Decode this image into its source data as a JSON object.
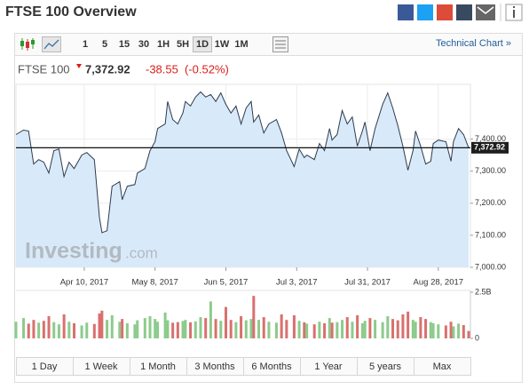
{
  "header": {
    "title": "FTSE 100 Overview"
  },
  "toolbar": {
    "intervals": [
      "1",
      "5",
      "15",
      "30",
      "1H",
      "5H",
      "1D",
      "1W",
      "1M"
    ],
    "active_interval": "1D",
    "technical_link": "Technical Chart »"
  },
  "quote": {
    "name": "FTSE 100",
    "last": 7372.92,
    "last_label": "7,372.92",
    "change": -38.55,
    "change_pct": -0.52,
    "change_pct_label": "(-0.52%)"
  },
  "watermark": {
    "brand": "Investing",
    "suffix": ".com"
  },
  "ranges": [
    "1 Day",
    "1 Week",
    "1 Month",
    "3 Months",
    "6 Months",
    "1 Year",
    "5 years",
    "Max"
  ],
  "chart_data": {
    "type": "line",
    "grid": true,
    "x": [
      "2017-03-14",
      "2017-03-17",
      "2017-03-19",
      "2017-03-21",
      "2017-03-23",
      "2017-03-25",
      "2017-03-27",
      "2017-03-29",
      "2017-03-31",
      "2017-04-02",
      "2017-04-04",
      "2017-04-06",
      "2017-04-09",
      "2017-04-11",
      "2017-04-14",
      "2017-04-16",
      "2017-04-17",
      "2017-04-19",
      "2017-04-21",
      "2017-04-24",
      "2017-04-25",
      "2017-04-27",
      "2017-04-30",
      "2017-05-01",
      "2017-05-04",
      "2017-05-06",
      "2017-05-08",
      "2017-05-09",
      "2017-05-12",
      "2017-05-13",
      "2017-05-15",
      "2017-05-17",
      "2017-05-19",
      "2017-05-20",
      "2017-05-22",
      "2017-05-24",
      "2017-05-26",
      "2017-05-28",
      "2017-05-30",
      "2017-06-01",
      "2017-06-03",
      "2017-06-05",
      "2017-06-07",
      "2017-06-09",
      "2017-06-11",
      "2017-06-13",
      "2017-06-15",
      "2017-06-16",
      "2017-06-18",
      "2017-06-20",
      "2017-06-22",
      "2017-06-25",
      "2017-06-27",
      "2017-06-29",
      "2017-07-02",
      "2017-07-04",
      "2017-07-06",
      "2017-07-07",
      "2017-07-10",
      "2017-07-12",
      "2017-07-14",
      "2017-07-16",
      "2017-07-17",
      "2017-07-19",
      "2017-07-21",
      "2017-07-23",
      "2017-07-25",
      "2017-07-27",
      "2017-07-29",
      "2017-07-30",
      "2017-08-01",
      "2017-08-03",
      "2017-08-06",
      "2017-08-08",
      "2017-08-10",
      "2017-08-12",
      "2017-08-14",
      "2017-08-16",
      "2017-08-18",
      "2017-08-19",
      "2017-08-21",
      "2017-08-23",
      "2017-08-25",
      "2017-08-26",
      "2017-08-28",
      "2017-08-31",
      "2017-09-02",
      "2017-09-03",
      "2017-09-05",
      "2017-09-07",
      "2017-09-09"
    ],
    "xlim": [
      "2017-03-14",
      "2017-09-09"
    ],
    "xticks": [
      {
        "value": "2017-04-10",
        "label": "Apr 10, 2017"
      },
      {
        "value": "2017-05-08",
        "label": "May 8, 2017"
      },
      {
        "value": "2017-06-05",
        "label": "Jun 5, 2017"
      },
      {
        "value": "2017-07-03",
        "label": "Jul 3, 2017"
      },
      {
        "value": "2017-07-31",
        "label": "Jul 31, 2017"
      },
      {
        "value": "2017-08-28",
        "label": "Aug 28, 2017"
      }
    ],
    "ylim": [
      7000,
      7565
    ],
    "yticks": [
      {
        "value": 7000,
        "label": "7,000.00"
      },
      {
        "value": 7100,
        "label": "7,100.00"
      },
      {
        "value": 7200,
        "label": "7,200.00"
      },
      {
        "value": 7300,
        "label": "7,300.00"
      },
      {
        "value": 7400,
        "label": "7,400.00"
      }
    ],
    "y2lim": [
      0,
      2500000000
    ],
    "y2ticks": [
      {
        "value": 2500000000,
        "label": "2.5B"
      },
      0
    ],
    "series": [
      {
        "name": "FTSE 100",
        "color": "#2d3a4e",
        "fill": "#d8eafa",
        "values": [
          7414,
          7428,
          7425,
          7322,
          7336,
          7328,
          7294,
          7364,
          7369,
          7283,
          7328,
          7308,
          7350,
          7358,
          7336,
          7156,
          7108,
          7114,
          7253,
          7267,
          7211,
          7253,
          7258,
          7294,
          7308,
          7364,
          7392,
          7433,
          7447,
          7517,
          7461,
          7447,
          7481,
          7517,
          7503,
          7531,
          7547,
          7531,
          7539,
          7517,
          7544,
          7508,
          7481,
          7503,
          7447,
          7497,
          7517,
          7453,
          7475,
          7419,
          7447,
          7461,
          7419,
          7364,
          7314,
          7369,
          7342,
          7350,
          7336,
          7386,
          7364,
          7433,
          7397,
          7414,
          7489,
          7447,
          7469,
          7378,
          7425,
          7453,
          7364,
          7433,
          7508,
          7544,
          7497,
          7442,
          7378,
          7303,
          7364,
          7425,
          7378,
          7322,
          7331,
          7386,
          7397,
          7392,
          7331,
          7392,
          7433,
          7414,
          7372.92
        ]
      },
      {
        "name": "Volume",
        "axis": "y2",
        "type": "bar",
        "up_color": "#8ccb8c",
        "down_color": "#d9706e",
        "values": [
          900000000,
          1100000000,
          800000000,
          1000000000,
          850000000,
          950000000,
          1200000000,
          880000000,
          760000000,
          1300000000,
          900000000,
          820000000,
          700000000,
          850000000,
          780000000,
          1350000000,
          1500000000,
          1000000000,
          1250000000,
          900000000,
          1050000000,
          820000000,
          760000000,
          980000000,
          1100000000,
          1200000000,
          1050000000,
          900000000,
          1400000000,
          980000000,
          850000000,
          880000000,
          940000000,
          1000000000,
          870000000,
          920000000,
          1150000000,
          1100000000,
          2000000000,
          1050000000,
          950000000,
          1700000000,
          1000000000,
          880000000,
          1200000000,
          980000000,
          1050000000,
          2300000000,
          1000000000,
          1150000000,
          900000000,
          850000000,
          1300000000,
          1000000000,
          1250000000,
          950000000,
          870000000,
          800000000,
          760000000,
          900000000,
          820000000,
          1100000000,
          850000000,
          880000000,
          1000000000,
          1150000000,
          900000000,
          1250000000,
          820000000,
          950000000,
          1100000000,
          1000000000,
          880000000,
          1200000000,
          1050000000,
          980000000,
          1300000000,
          1450000000,
          1000000000,
          900000000,
          1150000000,
          1050000000,
          880000000,
          820000000,
          760000000,
          700000000,
          900000000,
          650000000,
          800000000,
          720000000,
          400000000
        ]
      }
    ]
  }
}
